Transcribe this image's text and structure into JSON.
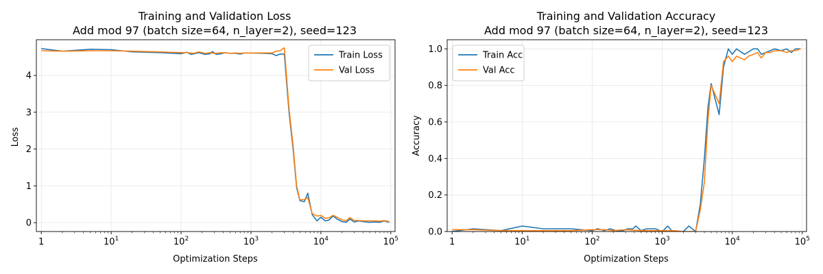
{
  "chart_data": [
    {
      "type": "line",
      "title": [
        "Training and Validation Loss",
        "Add mod 97 (batch size=64, n_layer=2), seed=123"
      ],
      "xlabel": "Optimization Steps",
      "ylabel": "Loss",
      "xscale": "log",
      "xlim": [
        0.85,
        115000
      ],
      "ylim": [
        -0.24,
        4.97
      ],
      "xticks": [
        {
          "value": 1,
          "base": "1",
          "exp": ""
        },
        {
          "value": 10,
          "base": "10",
          "exp": "1"
        },
        {
          "value": 100,
          "base": "10",
          "exp": "2"
        },
        {
          "value": 1000,
          "base": "10",
          "exp": "3"
        },
        {
          "value": 10000,
          "base": "10",
          "exp": "4"
        },
        {
          "value": 100000,
          "base": "10",
          "exp": "5"
        }
      ],
      "yticks": [
        {
          "value": 0,
          "label": "0"
        },
        {
          "value": 1,
          "label": "1"
        },
        {
          "value": 2,
          "label": "2"
        },
        {
          "value": 3,
          "label": "3"
        },
        {
          "value": 4,
          "label": "4"
        }
      ],
      "grid": true,
      "legend_position": "upper right",
      "series": [
        {
          "name": "Train Loss",
          "color": "#1f77b4",
          "points": [
            [
              1,
              4.73
            ],
            [
              2,
              4.66
            ],
            [
              5,
              4.71
            ],
            [
              10,
              4.7
            ],
            [
              20,
              4.64
            ],
            [
              50,
              4.62
            ],
            [
              100,
              4.59
            ],
            [
              120,
              4.63
            ],
            [
              140,
              4.57
            ],
            [
              180,
              4.62
            ],
            [
              220,
              4.57
            ],
            [
              260,
              4.59
            ],
            [
              280,
              4.65
            ],
            [
              320,
              4.57
            ],
            [
              380,
              4.59
            ],
            [
              420,
              4.62
            ],
            [
              500,
              4.6
            ],
            [
              600,
              4.6
            ],
            [
              700,
              4.58
            ],
            [
              800,
              4.61
            ],
            [
              1000,
              4.61
            ],
            [
              1500,
              4.6
            ],
            [
              2000,
              4.59
            ],
            [
              2300,
              4.54
            ],
            [
              2600,
              4.58
            ],
            [
              3000,
              4.58
            ],
            [
              3500,
              3.0
            ],
            [
              4000,
              2.0
            ],
            [
              4500,
              0.95
            ],
            [
              5000,
              0.6
            ],
            [
              5800,
              0.57
            ],
            [
              6500,
              0.8
            ],
            [
              7500,
              0.22
            ],
            [
              8800,
              0.05
            ],
            [
              10000,
              0.15
            ],
            [
              11500,
              0.05
            ],
            [
              13000,
              0.07
            ],
            [
              15000,
              0.18
            ],
            [
              17000,
              0.1
            ],
            [
              20000,
              0.03
            ],
            [
              23000,
              0.01
            ],
            [
              26000,
              0.1
            ],
            [
              30000,
              0.02
            ],
            [
              35000,
              0.05
            ],
            [
              40000,
              0.03
            ],
            [
              50000,
              0.01
            ],
            [
              60000,
              0.02
            ],
            [
              70000,
              0.01
            ],
            [
              80000,
              0.05
            ],
            [
              95000,
              0.01
            ]
          ]
        },
        {
          "name": "Val Loss",
          "color": "#ff7f0e",
          "points": [
            [
              1,
              4.67
            ],
            [
              2,
              4.66
            ],
            [
              5,
              4.67
            ],
            [
              10,
              4.67
            ],
            [
              20,
              4.66
            ],
            [
              50,
              4.64
            ],
            [
              100,
              4.62
            ],
            [
              120,
              4.62
            ],
            [
              150,
              4.6
            ],
            [
              180,
              4.64
            ],
            [
              220,
              4.6
            ],
            [
              260,
              4.62
            ],
            [
              300,
              4.6
            ],
            [
              350,
              4.61
            ],
            [
              420,
              4.62
            ],
            [
              500,
              4.6
            ],
            [
              600,
              4.61
            ],
            [
              700,
              4.6
            ],
            [
              800,
              4.61
            ],
            [
              1000,
              4.61
            ],
            [
              1500,
              4.61
            ],
            [
              2000,
              4.61
            ],
            [
              2300,
              4.66
            ],
            [
              2600,
              4.67
            ],
            [
              3000,
              4.75
            ],
            [
              3500,
              3.1
            ],
            [
              4000,
              2.1
            ],
            [
              4500,
              1.0
            ],
            [
              5000,
              0.62
            ],
            [
              5800,
              0.63
            ],
            [
              6500,
              0.68
            ],
            [
              7500,
              0.25
            ],
            [
              8800,
              0.18
            ],
            [
              10000,
              0.2
            ],
            [
              11500,
              0.12
            ],
            [
              13000,
              0.13
            ],
            [
              15000,
              0.2
            ],
            [
              17000,
              0.15
            ],
            [
              20000,
              0.08
            ],
            [
              23000,
              0.05
            ],
            [
              26000,
              0.14
            ],
            [
              30000,
              0.06
            ],
            [
              35000,
              0.06
            ],
            [
              40000,
              0.05
            ],
            [
              50000,
              0.05
            ],
            [
              60000,
              0.05
            ],
            [
              70000,
              0.04
            ],
            [
              80000,
              0.06
            ],
            [
              95000,
              0.03
            ]
          ]
        }
      ]
    },
    {
      "type": "line",
      "title": [
        "Training and Validation Accuracy",
        "Add mod 97 (batch size=64, n_layer=2), seed=123"
      ],
      "xlabel": "Optimization Steps",
      "ylabel": "Accuracy",
      "xscale": "log",
      "xlim": [
        0.85,
        115000
      ],
      "ylim": [
        0.0,
        1.05
      ],
      "xticks": [
        {
          "value": 1,
          "base": "1",
          "exp": ""
        },
        {
          "value": 10,
          "base": "10",
          "exp": "1"
        },
        {
          "value": 100,
          "base": "10",
          "exp": "2"
        },
        {
          "value": 1000,
          "base": "10",
          "exp": "3"
        },
        {
          "value": 10000,
          "base": "10",
          "exp": "4"
        },
        {
          "value": 100000,
          "base": "10",
          "exp": "5"
        }
      ],
      "yticks": [
        {
          "value": 0.0,
          "label": "0.0"
        },
        {
          "value": 0.2,
          "label": "0.2"
        },
        {
          "value": 0.4,
          "label": "0.4"
        },
        {
          "value": 0.6,
          "label": "0.6"
        },
        {
          "value": 0.8,
          "label": "0.8"
        },
        {
          "value": 1.0,
          "label": "1.0"
        }
      ],
      "grid": true,
      "legend_position": "upper left",
      "series": [
        {
          "name": "Train Acc",
          "color": "#1f77b4",
          "points": [
            [
              1,
              0.0
            ],
            [
              2,
              0.015
            ],
            [
              5,
              0.005
            ],
            [
              10,
              0.03
            ],
            [
              20,
              0.015
            ],
            [
              50,
              0.015
            ],
            [
              100,
              0.005
            ],
            [
              120,
              0.015
            ],
            [
              150,
              0.005
            ],
            [
              180,
              0.015
            ],
            [
              220,
              0.005
            ],
            [
              280,
              0.005
            ],
            [
              320,
              0.015
            ],
            [
              380,
              0.015
            ],
            [
              420,
              0.03
            ],
            [
              500,
              0.005
            ],
            [
              600,
              0.015
            ],
            [
              800,
              0.015
            ],
            [
              1000,
              0.0
            ],
            [
              1200,
              0.03
            ],
            [
              1400,
              0.0
            ],
            [
              2000,
              0.0
            ],
            [
              2400,
              0.03
            ],
            [
              3000,
              0.0
            ],
            [
              3500,
              0.15
            ],
            [
              4000,
              0.4
            ],
            [
              4500,
              0.68
            ],
            [
              5000,
              0.81
            ],
            [
              6500,
              0.64
            ],
            [
              7500,
              0.9
            ],
            [
              8800,
              1.0
            ],
            [
              10000,
              0.97
            ],
            [
              11500,
              1.0
            ],
            [
              15000,
              0.97
            ],
            [
              20000,
              1.0
            ],
            [
              23000,
              1.0
            ],
            [
              26000,
              0.97
            ],
            [
              30000,
              0.98
            ],
            [
              35000,
              0.99
            ],
            [
              40000,
              1.0
            ],
            [
              50000,
              0.99
            ],
            [
              60000,
              1.0
            ],
            [
              70000,
              0.98
            ],
            [
              80000,
              1.0
            ],
            [
              95000,
              1.0
            ]
          ]
        },
        {
          "name": "Val Acc",
          "color": "#ff7f0e",
          "points": [
            [
              1,
              0.01
            ],
            [
              2,
              0.01
            ],
            [
              5,
              0.005
            ],
            [
              10,
              0.005
            ],
            [
              20,
              0.005
            ],
            [
              50,
              0.005
            ],
            [
              100,
              0.01
            ],
            [
              150,
              0.01
            ],
            [
              200,
              0.005
            ],
            [
              300,
              0.01
            ],
            [
              500,
              0.005
            ],
            [
              800,
              0.005
            ],
            [
              1000,
              0.005
            ],
            [
              1500,
              0.005
            ],
            [
              2000,
              0.0
            ],
            [
              3000,
              0.0
            ],
            [
              3500,
              0.12
            ],
            [
              4000,
              0.27
            ],
            [
              4500,
              0.61
            ],
            [
              5000,
              0.8
            ],
            [
              6500,
              0.7
            ],
            [
              7500,
              0.93
            ],
            [
              8800,
              0.96
            ],
            [
              10000,
              0.93
            ],
            [
              11500,
              0.96
            ],
            [
              15000,
              0.94
            ],
            [
              17000,
              0.96
            ],
            [
              20000,
              0.97
            ],
            [
              23000,
              0.98
            ],
            [
              26000,
              0.95
            ],
            [
              30000,
              0.98
            ],
            [
              35000,
              0.98
            ],
            [
              40000,
              0.99
            ],
            [
              50000,
              0.99
            ],
            [
              60000,
              0.98
            ],
            [
              70000,
              0.99
            ],
            [
              80000,
              0.99
            ],
            [
              95000,
              1.0
            ]
          ]
        }
      ]
    }
  ]
}
